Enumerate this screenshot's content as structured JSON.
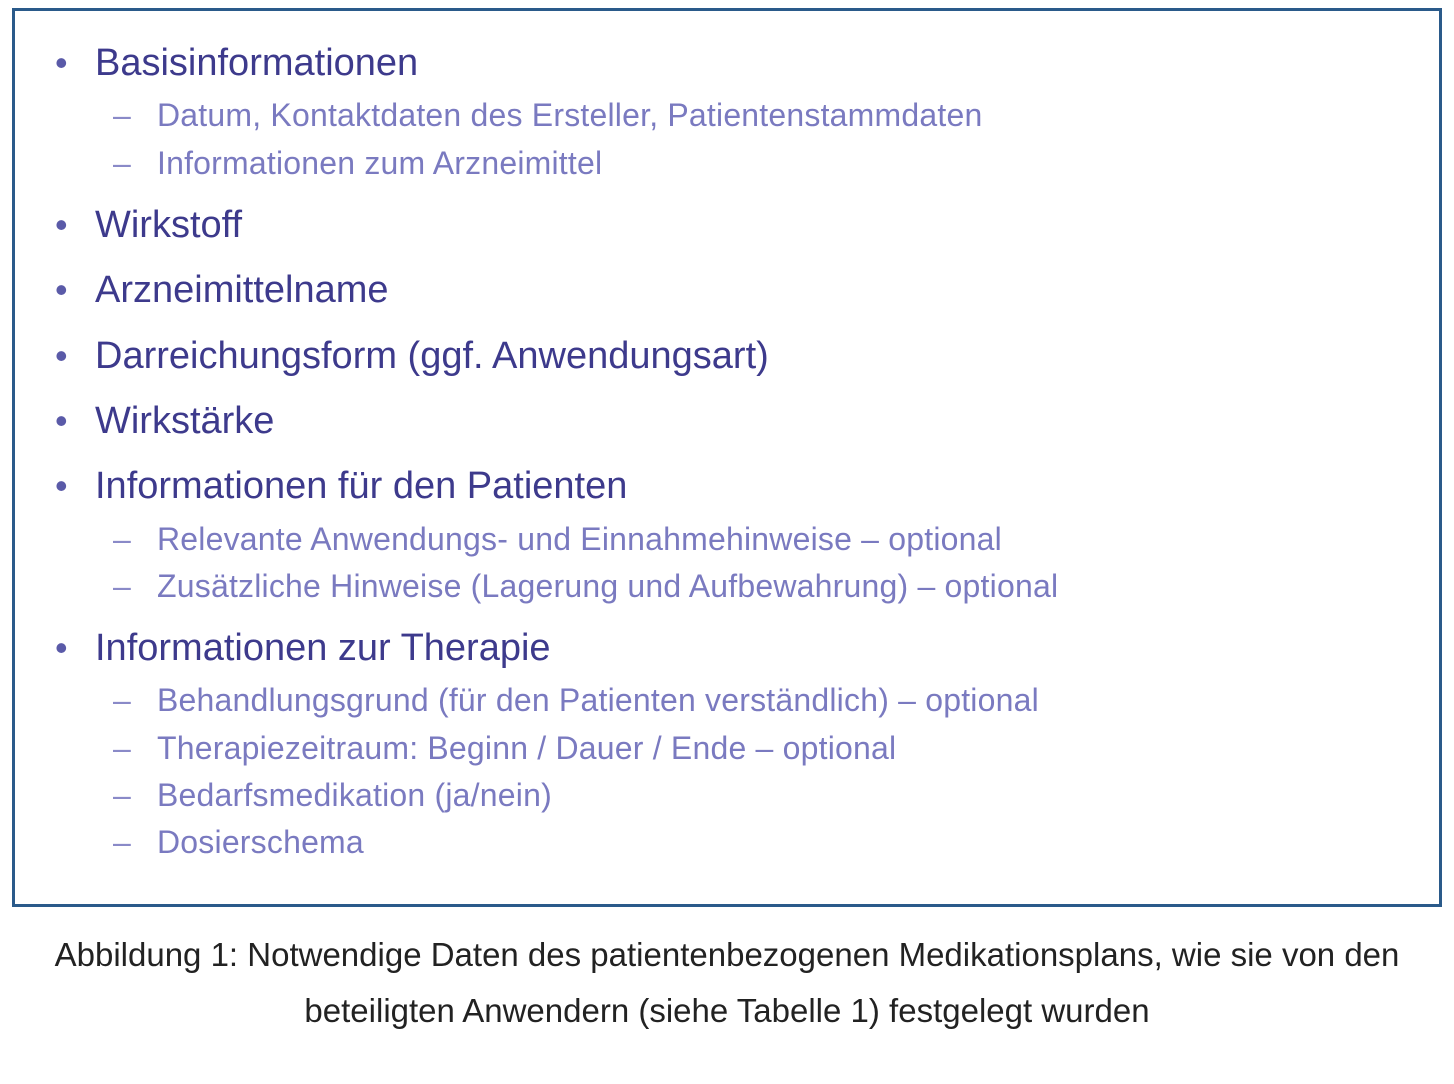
{
  "figure": {
    "border_color": "#2a5a8a",
    "bg_color": "#ffffff",
    "items": [
      {
        "label": "Basisinformationen",
        "subitems": [
          {
            "label": "Datum, Kontaktdaten des Ersteller, Patientenstammdaten"
          },
          {
            "label": "Informationen zum Arzneimittel"
          }
        ]
      },
      {
        "label": "Wirkstoff",
        "subitems": []
      },
      {
        "label": "Arzneimittelname",
        "subitems": []
      },
      {
        "label": "Darreichungsform (ggf. Anwendungsart)",
        "subitems": []
      },
      {
        "label": "Wirkstärke",
        "subitems": []
      },
      {
        "label": "Informationen für den Patienten",
        "subitems": [
          {
            "label": "Relevante Anwendungs- und Einnahmehinweise – optional"
          },
          {
            "label": "Zusätzliche Hinweise (Lagerung und Aufbewahrung) – optional"
          }
        ]
      },
      {
        "label": "Informationen zur Therapie",
        "subitems": [
          {
            "label": "Behandlungsgrund (für den Patienten verständlich) – optional"
          },
          {
            "label": "Therapiezeitraum: Beginn / Dauer / Ende  – optional"
          },
          {
            "label": "Bedarfsmedikation (ja/nein)"
          },
          {
            "label": "Dosierschema"
          }
        ]
      }
    ],
    "style": {
      "l1_color": "#3d3a8c",
      "l1_fontsize": 38,
      "l1_bullet_color": "#5a5aa8",
      "l2_color": "#7a7ac0",
      "l2_fontsize": 32,
      "l2_bullet_color": "#8a8ac8"
    }
  },
  "caption": {
    "text": "Abbildung 1: Notwendige Daten des patientenbezogenen Medikationsplans, wie sie von den beteiligten Anwendern (siehe Tabelle 1) festgelegt wurden",
    "color": "#222222",
    "fontsize": 33
  }
}
